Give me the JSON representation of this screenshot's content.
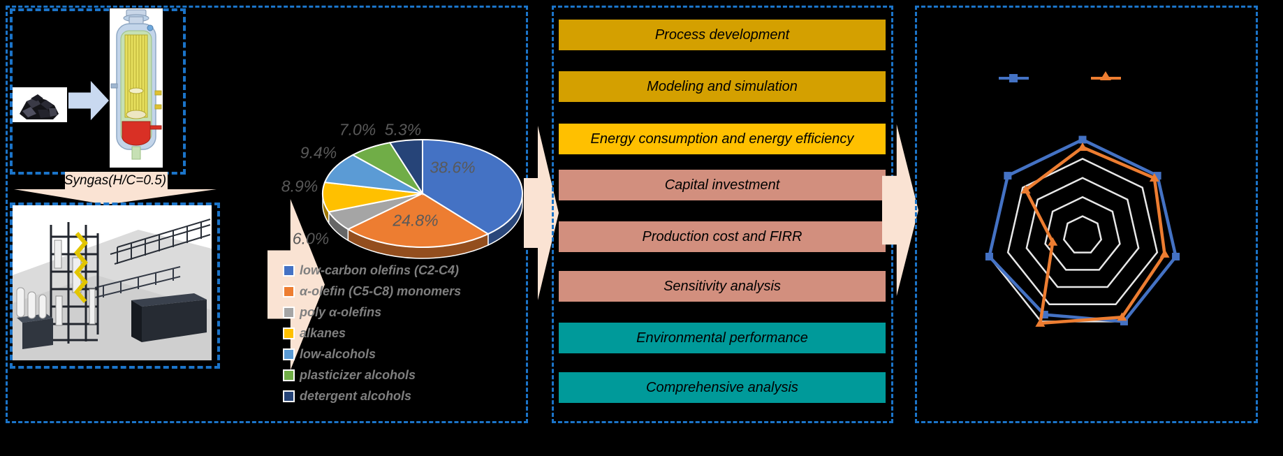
{
  "left_panel": {
    "syngas_label": "Syngas(H/C=0.5)",
    "coal_image": "coal-lumps",
    "gasifier_image": "gasifier-cutaway",
    "plant_image": "demonstration-plant-3d-model"
  },
  "process_steps": [
    {
      "label": "Process development",
      "color": "#D4A000"
    },
    {
      "label": "Modeling and simulation",
      "color": "#D4A000"
    },
    {
      "label": "Energy consumption and energy efficiency",
      "color": "#FFC000"
    },
    {
      "label": "Capital investment",
      "color": "#D28F7E"
    },
    {
      "label": "Production cost and FIRR",
      "color": "#D28F7E"
    },
    {
      "label": "Sensitivity analysis",
      "color": "#D28F7E"
    },
    {
      "label": "Environmental performance",
      "color": "#009A9A"
    },
    {
      "label": "Comprehensive analysis",
      "color": "#009A9A"
    }
  ],
  "colors": {
    "background": "#000000",
    "panel_border": "#1B74C9",
    "flow_arrow": "#FAE3D3",
    "coal_arrow": "#C9D9F0",
    "pie_label_text": "#595959",
    "legend_text": "#7F7F7F"
  },
  "chart_data": [
    {
      "type": "pie",
      "style": "3d",
      "title": "",
      "labels": [
        "low-carbon olefins (C2-C4)",
        "α-olefin (C5-C8) monomers",
        "poly α-olefins",
        "alkanes",
        "low-alcohols",
        "plasticizer alcohols",
        "detergent alcohols"
      ],
      "values": [
        38.6,
        24.8,
        6.0,
        8.9,
        9.4,
        7.0,
        5.3
      ],
      "data_labels": [
        "38.6%",
        "24.8%",
        "6.0%",
        "8.9%",
        "9.4%",
        "7.0%",
        "5.3%"
      ],
      "colors": [
        "#4472C4",
        "#ED7D31",
        "#A5A5A5",
        "#FFC000",
        "#5B9BD5",
        "#70AD47",
        "#264478"
      ],
      "legend_position": "below-left"
    },
    {
      "type": "radar",
      "axes": 7,
      "axis_labels": [
        "",
        "",
        "",
        "",
        "",
        "",
        ""
      ],
      "ring_values": [
        1,
        2,
        3,
        4,
        5
      ],
      "grid_color": "#E8E8E8",
      "legend_position": "top",
      "series": [
        {
          "name": "",
          "color": "#4472C4",
          "marker": "square",
          "values": [
            5.0,
            5.0,
            5.0,
            5.0,
            4.6,
            5.0,
            5.0
          ]
        },
        {
          "name": "",
          "color": "#ED7D31",
          "marker": "triangle",
          "values": [
            4.6,
            4.8,
            4.4,
            4.75,
            5.1,
            1.6,
            3.8
          ]
        }
      ]
    }
  ]
}
